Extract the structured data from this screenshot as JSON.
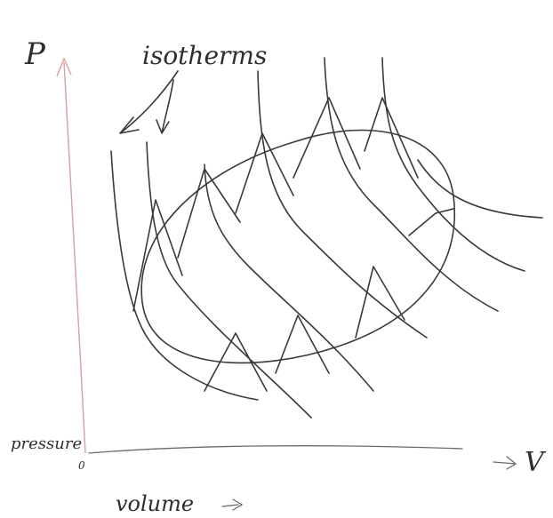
{
  "axis_y_label": "P",
  "annotation": "isotherms",
  "axis_x_label": "V",
  "y_caption": "pressure",
  "x_caption": "volume",
  "origin": "0"
}
